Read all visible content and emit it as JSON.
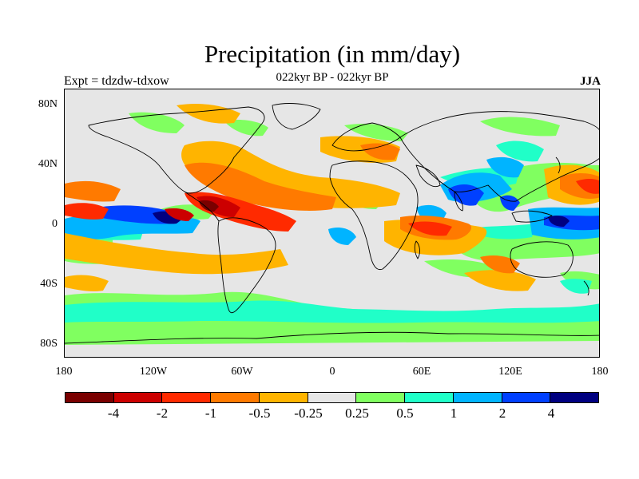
{
  "title": "Precipitation (in mm/day)",
  "subtitle": "022kyr BP - 022kyr BP",
  "experiment_label": "Expt = tdzdw-tdxow",
  "season_label": "JJA",
  "map": {
    "y_axis_labels": [
      "80N",
      "40N",
      "0",
      "40S",
      "80S"
    ],
    "x_axis_labels": [
      "180",
      "120W",
      "60W",
      "0",
      "60E",
      "120E",
      "180"
    ],
    "background_color": "#e6e6e6",
    "coastline_color": "#000000"
  },
  "legend": {
    "colors": [
      "#7a0000",
      "#cc0000",
      "#ff2a00",
      "#ff7a00",
      "#ffb400",
      "#e6e6e6",
      "#80ff60",
      "#20ffc8",
      "#00b4ff",
      "#0040ff",
      "#000080"
    ],
    "labels": [
      "-4",
      "-2",
      "-1",
      "-0.5",
      "-0.25",
      "0.25",
      "0.5",
      "1",
      "2",
      "4"
    ]
  }
}
